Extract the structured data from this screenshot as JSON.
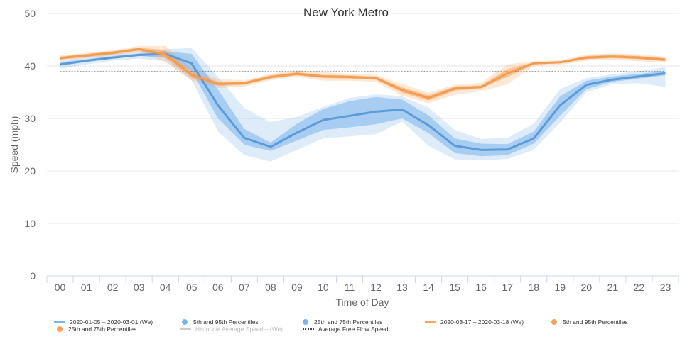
{
  "chart_data": {
    "type": "line",
    "title": "New York Metro",
    "xlabel": "Time of Day",
    "ylabel": "Speed (mph)",
    "categories": [
      "00",
      "01",
      "02",
      "03",
      "04",
      "05",
      "06",
      "07",
      "08",
      "09",
      "10",
      "11",
      "12",
      "13",
      "14",
      "15",
      "16",
      "17",
      "18",
      "19",
      "20",
      "21",
      "22",
      "23"
    ],
    "ylim": [
      0,
      50
    ],
    "yticks": [
      0,
      10,
      20,
      30,
      40,
      50
    ],
    "grid": true,
    "legend_position": "bottom",
    "free_flow_speed": 38.9,
    "series": [
      {
        "name": "2020-01-05 – 2020-03-01 (We)",
        "color": "#7cb5ec",
        "line_color": "#5b9bd8",
        "values": [
          40.3,
          41.0,
          41.6,
          42.1,
          42.3,
          40.5,
          32.5,
          26.3,
          24.6,
          27.3,
          29.7,
          30.5,
          31.3,
          31.7,
          28.7,
          24.8,
          24.0,
          24.1,
          26.2,
          32.5,
          36.4,
          37.4,
          38.0,
          38.6
        ],
        "p25": [
          40.0,
          40.8,
          41.4,
          41.9,
          41.6,
          39.0,
          30.0,
          25.0,
          23.8,
          25.8,
          27.8,
          28.3,
          28.9,
          30.0,
          27.2,
          23.4,
          22.8,
          23.0,
          25.2,
          30.5,
          35.6,
          37.0,
          37.6,
          38.2
        ],
        "p75": [
          40.7,
          41.3,
          41.9,
          42.4,
          42.8,
          42.3,
          35.5,
          28.0,
          25.4,
          29.0,
          31.8,
          33.3,
          34.1,
          33.6,
          30.6,
          26.2,
          25.2,
          25.1,
          27.5,
          34.2,
          37.2,
          38.0,
          38.5,
          39.0
        ],
        "p5": [
          39.5,
          40.3,
          41.0,
          41.4,
          40.9,
          37.3,
          27.5,
          23.0,
          21.8,
          24.0,
          26.2,
          26.6,
          27.0,
          29.4,
          24.8,
          22.2,
          22.0,
          22.3,
          24.0,
          29.2,
          35.0,
          36.6,
          36.7,
          36.0
        ],
        "p95": [
          41.0,
          41.8,
          42.3,
          42.8,
          43.2,
          43.4,
          37.9,
          32.0,
          29.3,
          30.3,
          32.2,
          33.9,
          34.6,
          34.2,
          32.1,
          27.8,
          26.1,
          26.3,
          29.0,
          35.6,
          37.7,
          38.4,
          39.0,
          39.8
        ]
      },
      {
        "name": "2020-03-17 – 2020-03-18 (We)",
        "color": "#f7a35c",
        "line_color": "#f39c4f",
        "values": [
          41.5,
          42.0,
          42.5,
          43.2,
          42.2,
          38.3,
          36.6,
          36.7,
          37.9,
          38.5,
          38.0,
          37.9,
          37.7,
          35.4,
          33.9,
          35.7,
          36.0,
          38.6,
          40.5,
          40.7,
          41.6,
          41.8,
          41.6,
          41.2
        ],
        "p25": [
          41.2,
          41.7,
          42.2,
          42.9,
          41.5,
          37.7,
          36.2,
          36.4,
          37.6,
          38.2,
          37.7,
          37.6,
          37.4,
          34.9,
          33.4,
          35.3,
          35.7,
          37.9,
          40.3,
          40.5,
          41.3,
          41.5,
          41.3,
          40.9
        ],
        "p75": [
          41.8,
          42.3,
          42.8,
          43.5,
          43.0,
          38.9,
          37.0,
          37.0,
          38.2,
          38.8,
          38.3,
          38.2,
          38.0,
          35.9,
          34.4,
          36.1,
          36.3,
          39.4,
          40.7,
          40.9,
          41.9,
          42.1,
          41.9,
          41.5
        ],
        "p5": [
          41.0,
          41.5,
          42.0,
          42.6,
          40.8,
          37.2,
          35.8,
          36.1,
          37.3,
          37.9,
          37.2,
          37.2,
          37.0,
          34.3,
          32.9,
          34.5,
          35.2,
          36.5,
          40.0,
          40.2,
          41.0,
          41.2,
          40.9,
          40.6
        ],
        "p95": [
          42.0,
          42.5,
          43.0,
          43.8,
          43.8,
          39.6,
          37.5,
          37.3,
          38.5,
          39.2,
          38.8,
          38.5,
          38.3,
          36.6,
          34.9,
          36.4,
          36.8,
          40.3,
          40.9,
          41.1,
          42.2,
          42.4,
          42.2,
          41.8
        ]
      }
    ]
  },
  "legend": [
    {
      "label": "2020-01-05 – 2020-03-01 (We)",
      "kind": "line",
      "color": "#7cb5ec",
      "muted": false
    },
    {
      "label": "5th and 95th Percentiles",
      "kind": "dot",
      "color": "#7cb5ec",
      "muted": false
    },
    {
      "label": "25th and 75th Percentiles",
      "kind": "dot",
      "color": "#7cb5ec",
      "muted": false
    },
    {
      "label": "2020-03-17 – 2020-03-18 (We)",
      "kind": "line",
      "color": "#f7a35c",
      "muted": false
    },
    {
      "label": "5th and 95th Percentiles",
      "kind": "dot",
      "color": "#f7a35c",
      "muted": false
    },
    {
      "label": "25th and 75th Percentiles",
      "kind": "dot",
      "color": "#f7a35c",
      "muted": false
    },
    {
      "label": "Historical Average Speed – (We)",
      "kind": "line",
      "color": "#cccccc",
      "muted": true
    },
    {
      "label": "Average Free Flow Speed",
      "kind": "dotted",
      "color": "#444444",
      "muted": false
    }
  ]
}
